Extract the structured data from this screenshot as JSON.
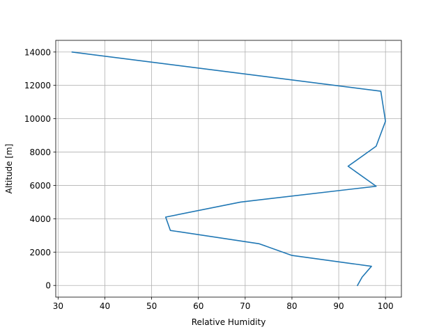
{
  "chart_data": {
    "type": "line",
    "xlabel": "Relative Humidity",
    "ylabel": "Altitude [m]",
    "xlim": [
      29.5,
      103.4
    ],
    "ylim": [
      -700,
      14700
    ],
    "grid": true,
    "x_ticks": [
      30,
      40,
      50,
      60,
      70,
      80,
      90,
      100
    ],
    "y_ticks": [
      0,
      2000,
      4000,
      6000,
      8000,
      10000,
      12000,
      14000
    ],
    "x_tick_labels": [
      "30",
      "40",
      "50",
      "60",
      "70",
      "80",
      "90",
      "100"
    ],
    "y_tick_labels": [
      "0",
      "2000",
      "4000",
      "6000",
      "8000",
      "10000",
      "12000",
      "14000"
    ],
    "series": [
      {
        "color": "#1f77b4",
        "x": [
          94,
          95,
          97,
          80,
          73,
          54,
          53,
          69,
          98,
          92,
          98,
          100,
          99,
          33
        ],
        "y": [
          0,
          500,
          1150,
          1800,
          2500,
          3300,
          4100,
          5000,
          5950,
          7150,
          8350,
          9850,
          11650,
          14000
        ]
      }
    ]
  }
}
